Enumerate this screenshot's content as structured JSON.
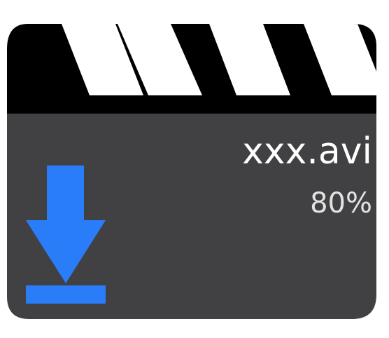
{
  "file": {
    "name": "xxx.avi",
    "progress_label": "80%",
    "progress": 0.8
  },
  "icons": {
    "tile": "video-clapperboard-icon",
    "download": "download-arrow-icon"
  },
  "colors": {
    "clapper_top": "#000000",
    "clapper_stripe": "#ffffff",
    "body": "#414042",
    "download_arrow": "#2a7df8",
    "file_name_text": "#ffffff",
    "progress_text": "#e2e2e2"
  }
}
